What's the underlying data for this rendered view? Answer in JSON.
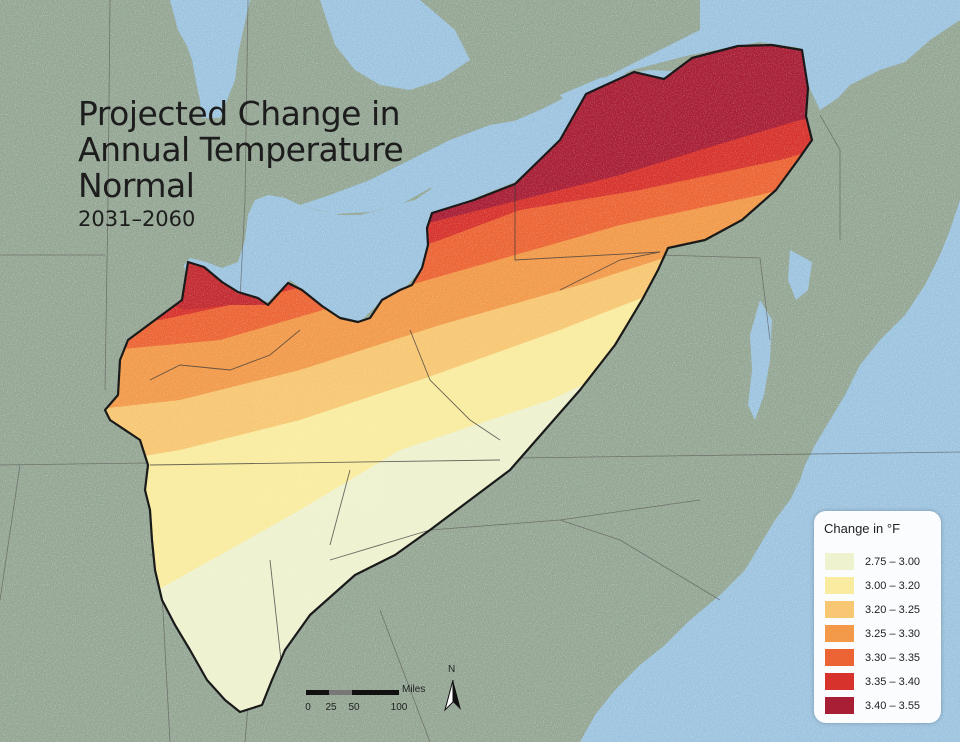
{
  "title": "Projected Change in Annual Temperature Normal",
  "title_lines": [
    "Projected Change in",
    "Annual Temperature",
    "Normal"
  ],
  "subtitle": "2031–2060",
  "legend": {
    "title": "Change in °F",
    "items": [
      {
        "label": "2.75 – 3.00",
        "color": "#eef2cf"
      },
      {
        "label": "3.00 – 3.20",
        "color": "#f9eca0"
      },
      {
        "label": "3.20 – 3.25",
        "color": "#f7c773"
      },
      {
        "label": "3.25 – 3.30",
        "color": "#f29a4a"
      },
      {
        "label": "3.30 – 3.35",
        "color": "#ec6434"
      },
      {
        "label": "3.35 – 3.40",
        "color": "#d7322c"
      },
      {
        "label": "3.40 – 3.55",
        "color": "#a81e35"
      }
    ]
  },
  "scale_bar": {
    "units": "Miles",
    "ticks": [
      "0",
      "25",
      "50",
      "100"
    ]
  },
  "north_arrow": {
    "label": "N",
    "icon": "north-arrow-icon"
  },
  "colors": {
    "water": "#9cc3df",
    "land": "#93a593",
    "boundary": "#1a1a1a"
  }
}
